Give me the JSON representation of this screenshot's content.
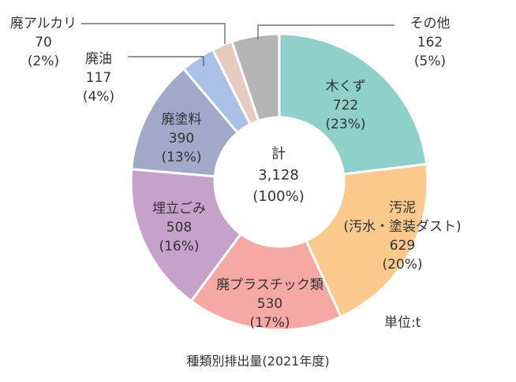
{
  "chart_data": {
    "type": "pie",
    "title": "",
    "center_label": {
      "title": "計",
      "value": "3,128",
      "percent": "(100%)"
    },
    "unit": "単位:t",
    "caption": "種類別排出量(2021年度)",
    "slices": [
      {
        "label": "木くず",
        "value": 722,
        "value_text": "722",
        "percent": "(23%)",
        "color": "#8fd0cb"
      },
      {
        "label": "汚泥",
        "sublabel": "(汚水・塗装ダスト)",
        "value": 629,
        "value_text": "629",
        "percent": "(20%)",
        "color": "#fbc98c"
      },
      {
        "label": "廃プラスチック類",
        "value": 530,
        "value_text": "530",
        "percent": "(17%)",
        "color": "#f6a8a5"
      },
      {
        "label": "埋立ごみ",
        "value": 508,
        "value_text": "508",
        "percent": "(16%)",
        "color": "#c6a2cb"
      },
      {
        "label": "廃塗料",
        "value": 390,
        "value_text": "390",
        "percent": "(13%)",
        "color": "#a2a8c8"
      },
      {
        "label": "廃油",
        "value": 117,
        "value_text": "117",
        "percent": "(4%)",
        "color": "#a9c1e4"
      },
      {
        "label": "廃アルカリ",
        "value": 70,
        "value_text": "70",
        "percent": "(2%)",
        "color": "#e6cac0"
      },
      {
        "label": "その他",
        "value": 162,
        "value_text": "162",
        "percent": "(5%)",
        "color": "#b5b5b5"
      }
    ]
  }
}
